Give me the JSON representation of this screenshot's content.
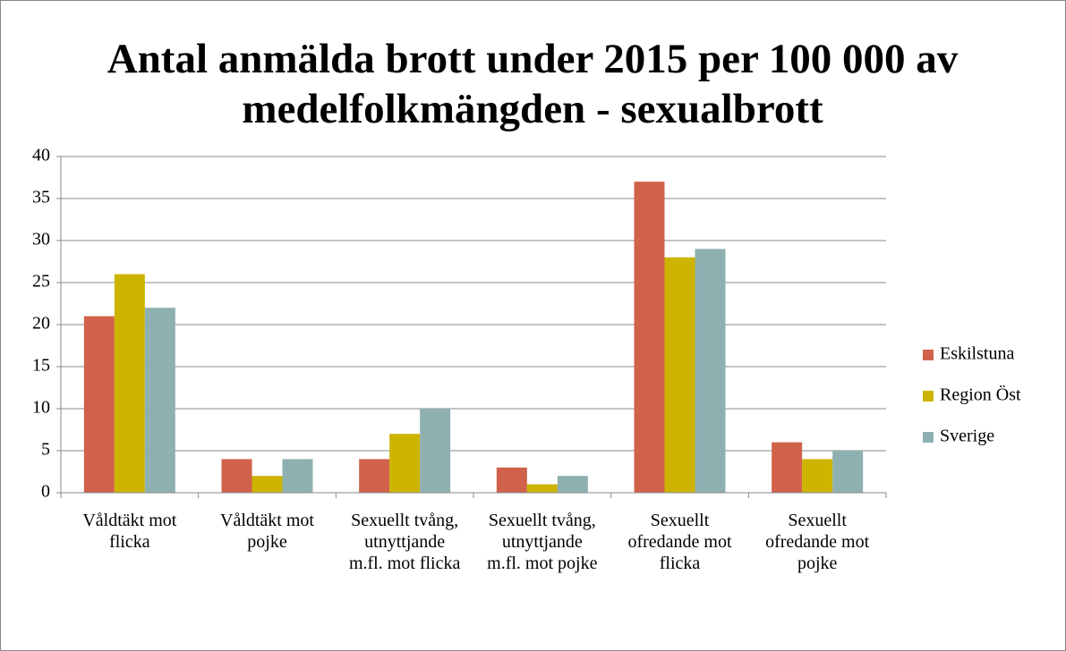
{
  "chart_data": {
    "type": "bar",
    "title": "Antal anmälda brott under 2015 per 100 000 av medelfolkmängden - sexualbrott",
    "categories": [
      "Våldtäkt mot flicka",
      "Våldtäkt mot pojke",
      "Sexuellt tvång, utnyttjande m.fl. mot flicka",
      "Sexuellt tvång, utnyttjande m.fl. mot pojke",
      "Sexuellt ofredande mot flicka",
      "Sexuellt ofredande mot pojke"
    ],
    "series": [
      {
        "name": "Eskilstuna",
        "color": "#d0614b",
        "values": [
          21,
          4,
          4,
          3,
          37,
          6
        ]
      },
      {
        "name": "Region Öst",
        "color": "#ccb400",
        "values": [
          26,
          2,
          7,
          1,
          28,
          4
        ]
      },
      {
        "name": "Sverige",
        "color": "#8fb0b0",
        "values": [
          22,
          4,
          10,
          2,
          29,
          5
        ]
      }
    ],
    "ylim": [
      0,
      40
    ],
    "yticks": [
      0,
      5,
      10,
      15,
      20,
      25,
      30,
      35,
      40
    ],
    "grid": true,
    "legend": "right"
  }
}
